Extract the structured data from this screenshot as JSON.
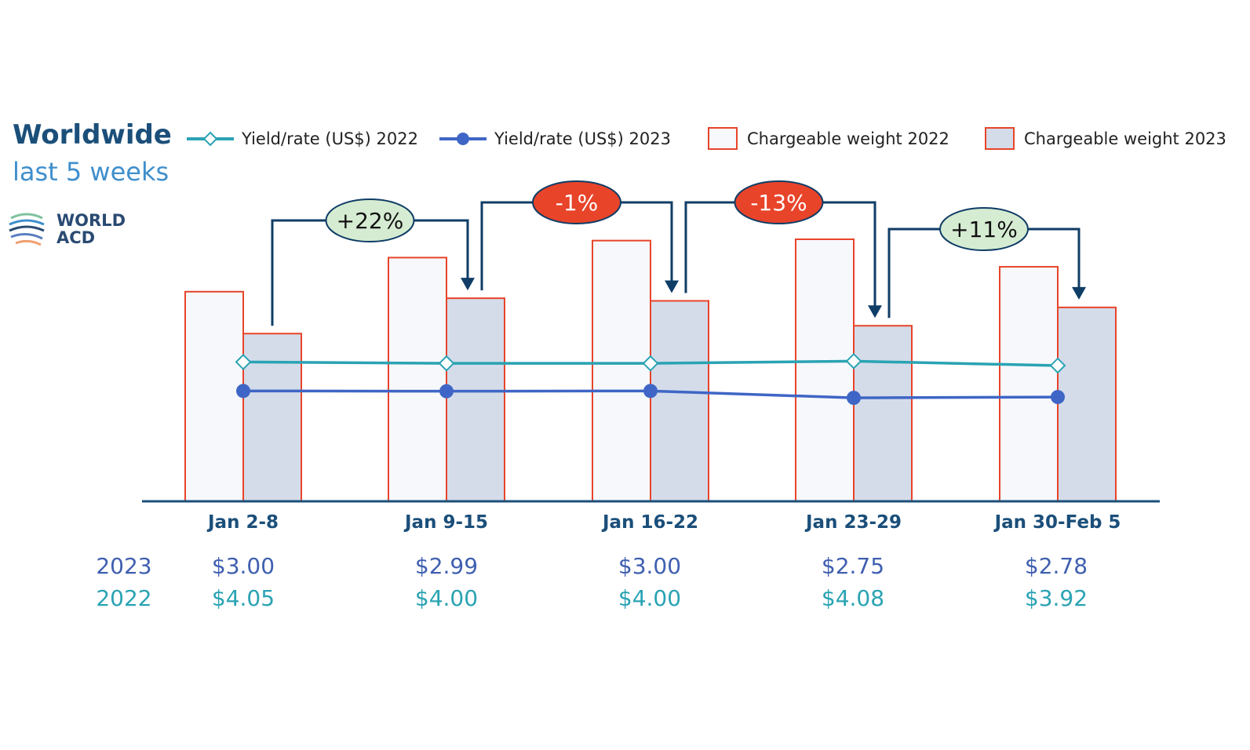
{
  "title": "Worldwide",
  "subtitle": "last 5 weeks",
  "logo_text": {
    "line1": "WORLD",
    "line2": "ACD"
  },
  "legend": [
    {
      "label": "Yield/rate (US$) 2022",
      "kind": "line-diamond",
      "color": "#2aa3b3"
    },
    {
      "label": "Yield/rate (US$) 2023",
      "kind": "line-dot",
      "color": "#3f66c6"
    },
    {
      "label": "Chargeable weight 2022",
      "kind": "box",
      "fill": "#f6f8fc",
      "stroke": "#e8442a"
    },
    {
      "label": "Chargeable weight 2023",
      "kind": "box",
      "fill": "#d4dcea",
      "stroke": "#e8442a"
    }
  ],
  "table": {
    "year_2023": "2023",
    "year_2022": "2022",
    "values_2023": [
      "$3.00",
      "$2.99",
      "$3.00",
      "$2.75",
      "$2.78"
    ],
    "values_2022": [
      "$4.05",
      "$4.00",
      "$4.00",
      "$4.08",
      "$3.92"
    ]
  },
  "chart_data": {
    "type": "bar",
    "categories": [
      "Jan 2-8",
      "Jan 9-15",
      "Jan 16-22",
      "Jan 23-29",
      "Jan 30-Feb 5"
    ],
    "series": [
      {
        "name": "Chargeable weight 2022",
        "type": "bar",
        "values": [
          80,
          93,
          99.5,
          100,
          89.5
        ]
      },
      {
        "name": "Chargeable weight 2023",
        "type": "bar",
        "values": [
          64,
          77.5,
          76.5,
          67,
          74
        ]
      },
      {
        "name": "Yield/rate (US$) 2022",
        "type": "line",
        "values": [
          4.05,
          4.0,
          4.0,
          4.08,
          3.92
        ]
      },
      {
        "name": "Yield/rate (US$) 2023",
        "type": "line",
        "values": [
          3.0,
          2.99,
          3.0,
          2.75,
          2.78
        ]
      }
    ],
    "bar_ylim": [
      0,
      100
    ],
    "line_ylim": [
      -1.0,
      5.0
    ],
    "annotations": [
      {
        "text": "+22%",
        "from": 0,
        "to": 1,
        "style": "positive"
      },
      {
        "text": "-1%",
        "from": 1,
        "to": 2,
        "style": "negative"
      },
      {
        "text": "-13%",
        "from": 2,
        "to": 3,
        "style": "negative"
      },
      {
        "text": "+11%",
        "from": 3,
        "to": 4,
        "style": "positive"
      }
    ],
    "colors": {
      "bar_stroke": "#e8442a",
      "bar_fill_2022": "#f6f8fc",
      "bar_fill_2023": "#d4dcea",
      "line_2022": "#2aa3b3",
      "line_2023": "#3f66c6",
      "axis": "#1b4f7a",
      "arrow": "#0f3d66",
      "positive_fill": "#d6ecd2",
      "negative_fill": "#e8442a"
    },
    "grid": false,
    "legend_position": "top"
  }
}
